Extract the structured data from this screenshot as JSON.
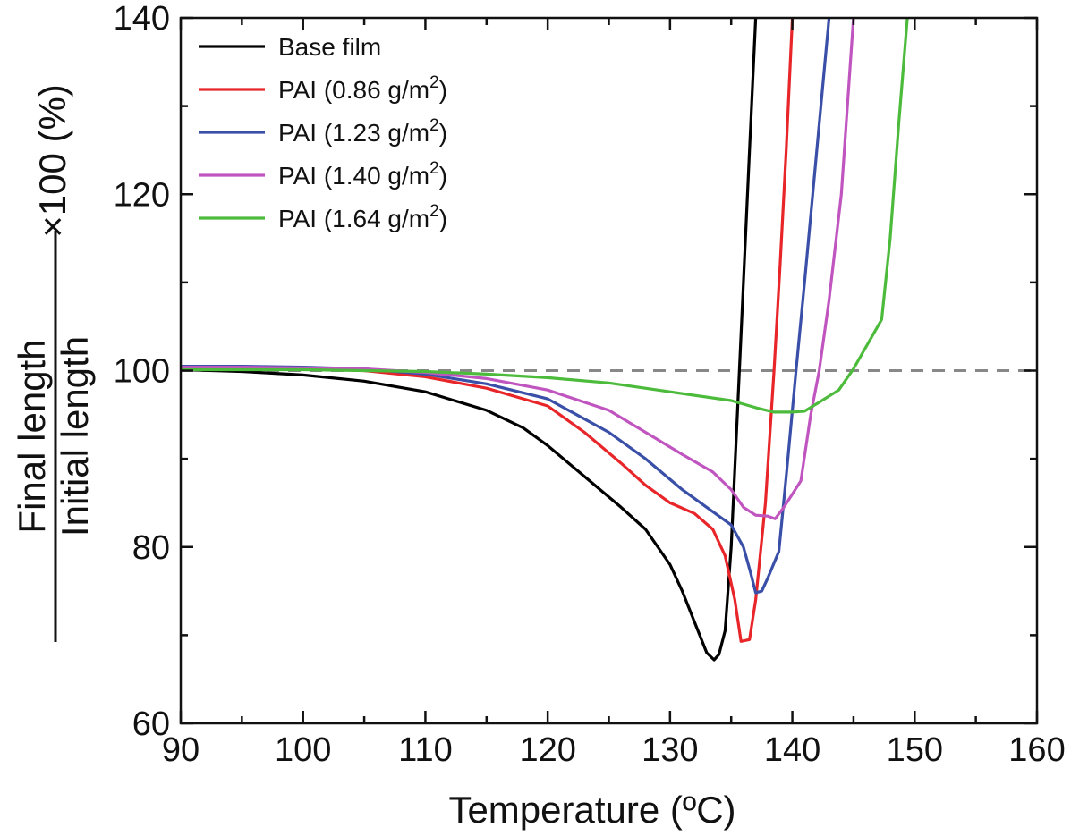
{
  "chart_data": {
    "type": "line",
    "title": "",
    "xlabel": "Temperature (ºC)",
    "ylabel": {
      "numerator": "Final length",
      "denominator": "Initial length",
      "multiplier": "×100 (%)"
    },
    "xlim": [
      90,
      160
    ],
    "ylim": [
      60,
      140
    ],
    "xticks": [
      "90",
      "100",
      "110",
      "120",
      "130",
      "140",
      "150",
      "160"
    ],
    "yticks": [
      "60",
      "80",
      "100",
      "120",
      "140"
    ],
    "reference_line": {
      "y": 100,
      "style": "dashed",
      "color": "#888888"
    },
    "legend_position": "top-left",
    "series": [
      {
        "name": "Base film",
        "label_main": "Base film",
        "label_sup": "",
        "label_tail": "",
        "color": "#000000",
        "points": [
          [
            90,
            100.1
          ],
          [
            95,
            99.9
          ],
          [
            100,
            99.5
          ],
          [
            105,
            98.8
          ],
          [
            110,
            97.6
          ],
          [
            115,
            95.5
          ],
          [
            118,
            93.5
          ],
          [
            120,
            91.5
          ],
          [
            123,
            88.0
          ],
          [
            126,
            84.5
          ],
          [
            128,
            82.0
          ],
          [
            130,
            78.0
          ],
          [
            131,
            75.0
          ],
          [
            132,
            71.5
          ],
          [
            133,
            68.0
          ],
          [
            133.6,
            67.2
          ],
          [
            134,
            67.8
          ],
          [
            134.5,
            70.5
          ],
          [
            135,
            80.0
          ],
          [
            135.5,
            95.0
          ],
          [
            136,
            110.0
          ],
          [
            136.5,
            125.0
          ],
          [
            137,
            140.0
          ]
        ]
      },
      {
        "name": "PAI (0.86 g/m2)",
        "label_main": "PAI (0.86 g/m",
        "label_sup": "2",
        "label_tail": ")",
        "color": "#e8262a",
        "points": [
          [
            90,
            100.4
          ],
          [
            95,
            100.4
          ],
          [
            100,
            100.3
          ],
          [
            105,
            100.0
          ],
          [
            110,
            99.3
          ],
          [
            115,
            98.0
          ],
          [
            120,
            96.0
          ],
          [
            123,
            93.0
          ],
          [
            126,
            89.5
          ],
          [
            128,
            87.0
          ],
          [
            130,
            85.0
          ],
          [
            132,
            83.8
          ],
          [
            133.5,
            82.0
          ],
          [
            134.5,
            79.0
          ],
          [
            135.3,
            74.0
          ],
          [
            135.8,
            69.3
          ],
          [
            136.5,
            69.5
          ],
          [
            137,
            74.0
          ],
          [
            137.8,
            85.0
          ],
          [
            138.5,
            100.0
          ],
          [
            139,
            112.0
          ],
          [
            139.5,
            125.0
          ],
          [
            140,
            140.0
          ]
        ]
      },
      {
        "name": "PAI (1.23 g/m2)",
        "label_main": "PAI (1.23 g/m",
        "label_sup": "2",
        "label_tail": ")",
        "color": "#3a4fa8",
        "points": [
          [
            90,
            100.5
          ],
          [
            95,
            100.5
          ],
          [
            100,
            100.4
          ],
          [
            105,
            100.2
          ],
          [
            110,
            99.6
          ],
          [
            115,
            98.5
          ],
          [
            120,
            96.8
          ],
          [
            125,
            93.0
          ],
          [
            128,
            90.0
          ],
          [
            131,
            86.5
          ],
          [
            133,
            84.5
          ],
          [
            135,
            82.5
          ],
          [
            136,
            80.0
          ],
          [
            136.6,
            77.0
          ],
          [
            137,
            74.8
          ],
          [
            137.5,
            75.0
          ],
          [
            138,
            76.5
          ],
          [
            138.9,
            79.5
          ],
          [
            139.5,
            88.0
          ],
          [
            140.3,
            100.0
          ],
          [
            141,
            110.0
          ],
          [
            142,
            125.0
          ],
          [
            143,
            140.0
          ]
        ]
      },
      {
        "name": "PAI (1.40 g/m2)",
        "label_main": "PAI (1.40 g/m",
        "label_sup": "2",
        "label_tail": ")",
        "color": "#c055c0",
        "points": [
          [
            90,
            100.4
          ],
          [
            95,
            100.4
          ],
          [
            100,
            100.3
          ],
          [
            105,
            100.2
          ],
          [
            110,
            99.8
          ],
          [
            115,
            99.1
          ],
          [
            120,
            97.8
          ],
          [
            125,
            95.5
          ],
          [
            128,
            93.0
          ],
          [
            131,
            90.5
          ],
          [
            133.5,
            88.5
          ],
          [
            135,
            86.5
          ],
          [
            136,
            84.5
          ],
          [
            137,
            83.6
          ],
          [
            138,
            83.5
          ],
          [
            138.6,
            83.2
          ],
          [
            139.3,
            84.5
          ],
          [
            140,
            86.0
          ],
          [
            140.7,
            87.5
          ],
          [
            141.5,
            95.0
          ],
          [
            142.2,
            100.0
          ],
          [
            143,
            108.0
          ],
          [
            144,
            120.0
          ],
          [
            145,
            140.0
          ]
        ]
      },
      {
        "name": "PAI (1.64 g/m2)",
        "label_main": "PAI (1.64 g/m",
        "label_sup": "2",
        "label_tail": ")",
        "color": "#4cbb3c",
        "points": [
          [
            90,
            100.1
          ],
          [
            95,
            100.1
          ],
          [
            100,
            100.1
          ],
          [
            105,
            100.0
          ],
          [
            110,
            99.9
          ],
          [
            115,
            99.6
          ],
          [
            120,
            99.2
          ],
          [
            125,
            98.6
          ],
          [
            130,
            97.6
          ],
          [
            135,
            96.6
          ],
          [
            137,
            95.8
          ],
          [
            138.5,
            95.3
          ],
          [
            140,
            95.3
          ],
          [
            141,
            95.4
          ],
          [
            142.3,
            96.5
          ],
          [
            143.8,
            97.8
          ],
          [
            145,
            100.2
          ],
          [
            147.3,
            105.8
          ],
          [
            148,
            115.0
          ],
          [
            148.7,
            128.0
          ],
          [
            149.4,
            140.0
          ]
        ]
      }
    ]
  }
}
